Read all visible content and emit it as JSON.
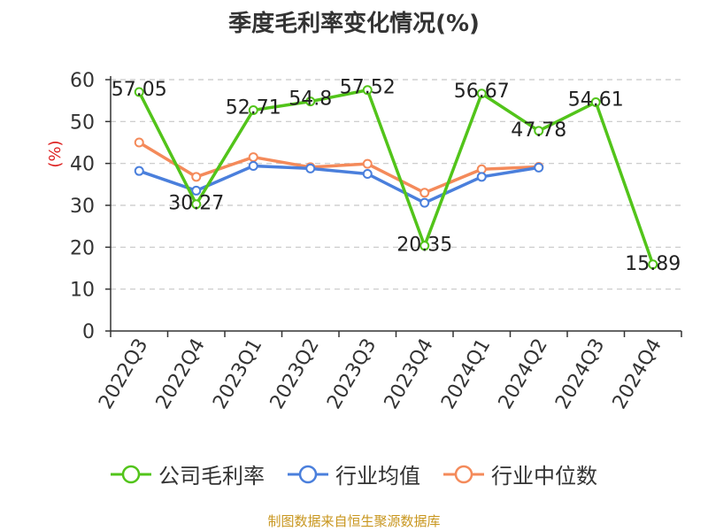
{
  "chart_data": {
    "type": "line",
    "title": "季度毛利率变化情况(%)",
    "ylabel": "(%)",
    "xlabel": "",
    "categories": [
      "2022Q3",
      "2022Q4",
      "2023Q1",
      "2023Q2",
      "2023Q3",
      "2023Q4",
      "2024Q1",
      "2024Q2",
      "2024Q3",
      "2024Q4"
    ],
    "ylim": [
      0,
      60
    ],
    "yticks": [
      0,
      10,
      20,
      30,
      40,
      50,
      60
    ],
    "grid": "horizontal-dashed",
    "legend_position": "bottom",
    "series": [
      {
        "name": "公司毛利率",
        "color": "#52c41a",
        "labeled": true,
        "values": [
          57.05,
          30.27,
          52.71,
          54.8,
          57.52,
          20.35,
          56.67,
          47.78,
          54.61,
          15.89
        ]
      },
      {
        "name": "行业均值",
        "color": "#4a7fdc",
        "labeled": false,
        "values": [
          38.2,
          33.5,
          39.4,
          38.8,
          37.5,
          30.6,
          36.8,
          39.0,
          null,
          null
        ]
      },
      {
        "name": "行业中位数",
        "color": "#f48a5a",
        "labeled": false,
        "values": [
          45.0,
          36.8,
          41.5,
          39.1,
          39.9,
          33.0,
          38.6,
          39.2,
          null,
          null
        ]
      }
    ]
  },
  "source_note": "制图数据来自恒生聚源数据库"
}
